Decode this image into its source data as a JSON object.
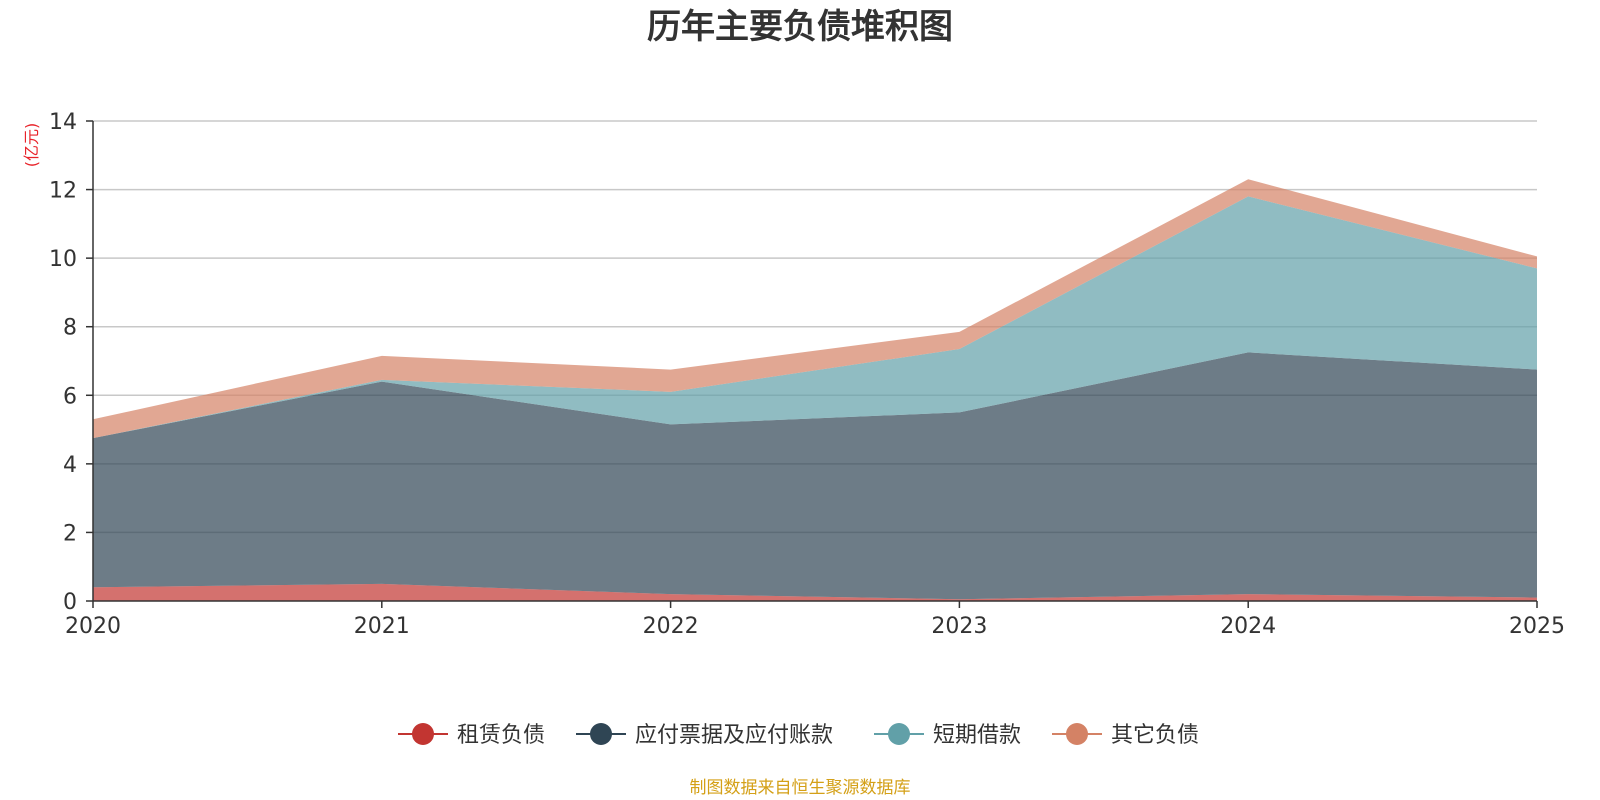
{
  "chart_data": {
    "type": "area",
    "stacked": true,
    "title": "历年主要负债堆积图",
    "ylabel": "(亿元)",
    "xlabel": "",
    "categories": [
      "2020",
      "2021",
      "2022",
      "2023",
      "2024",
      "2025"
    ],
    "ylim": [
      0,
      14
    ],
    "yticks": [
      0,
      2,
      4,
      6,
      8,
      10,
      12,
      14
    ],
    "grid": true,
    "series": [
      {
        "name": "租赁负债",
        "color": "#c23531",
        "values": [
          0.4,
          0.5,
          0.2,
          0.05,
          0.2,
          0.1
        ]
      },
      {
        "name": "应付票据及应付账款",
        "color": "#2f4554",
        "values": [
          4.35,
          5.9,
          4.95,
          5.45,
          7.05,
          6.65
        ]
      },
      {
        "name": "短期借款",
        "color": "#61a0a8",
        "values": [
          0.0,
          0.05,
          0.95,
          1.85,
          4.55,
          2.95
        ]
      },
      {
        "name": "其它负债",
        "color": "#d48265",
        "values": [
          0.55,
          0.7,
          0.65,
          0.5,
          0.5,
          0.35
        ]
      }
    ],
    "legend_position": "bottom-center",
    "source": "制图数据来自恒生聚源数据库"
  }
}
